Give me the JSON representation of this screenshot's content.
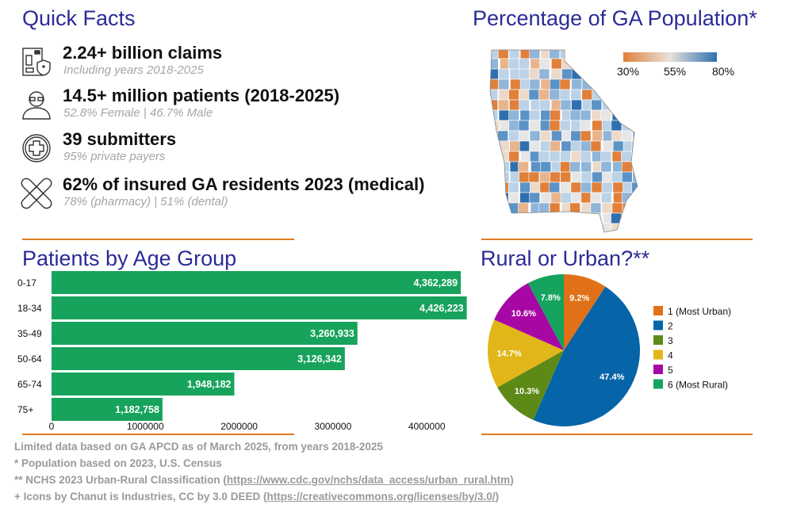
{
  "quick_facts": {
    "title": "Quick Facts",
    "items": [
      {
        "icon": "claims-document-shield-icon",
        "headline": "2.24+ billion claims",
        "sub": "Including years 2018-2025"
      },
      {
        "icon": "elderly-patient-icon",
        "headline": "14.5+ million patients (2018-2025)",
        "sub": "52.8% Female | 46.7% Male"
      },
      {
        "icon": "medical-cross-circle-icon",
        "headline": "39 submitters",
        "sub": "95% private payers"
      },
      {
        "icon": "bandage-icon",
        "headline": "62% of insured GA residents 2023 (medical)",
        "sub": "78% (pharmacy) | 51% (dental)"
      }
    ]
  },
  "map": {
    "title": "Percentage of GA Population*",
    "legend": {
      "min_label": "30%",
      "mid_label": "55%",
      "max_label": "80%",
      "colors": [
        "#e0803a",
        "#e8e2dc",
        "#2f6fb0"
      ]
    }
  },
  "chart_data": [
    {
      "type": "bar",
      "orientation": "horizontal",
      "title": "Patients by Age Group",
      "categories": [
        "0-17",
        "18-34",
        "35-49",
        "50-64",
        "65-74",
        "75+"
      ],
      "values": [
        4362289,
        4426223,
        3260933,
        3126342,
        1948182,
        1182758
      ],
      "value_labels": [
        "4,362,289",
        "4,426,223",
        "3,260,933",
        "3,126,342",
        "1,948,182",
        "1,182,758"
      ],
      "x_ticks": [
        "0",
        "1000000",
        "2000000",
        "3000000",
        "4000000"
      ],
      "x_tick_values": [
        0,
        1000000,
        2000000,
        3000000,
        4000000
      ],
      "color": "#17a35c",
      "grid": false
    },
    {
      "type": "pie",
      "title": "Rural or Urban?**",
      "legend_position": "right",
      "slices": [
        {
          "label": "1 (Most Urban)",
          "value": 9.2,
          "text": "9.2%",
          "color": "#e07118"
        },
        {
          "label": "2",
          "value": 47.4,
          "text": "47.4%",
          "color": "#0565a8"
        },
        {
          "label": "3",
          "value": 10.3,
          "text": "10.3%",
          "color": "#5d8a17"
        },
        {
          "label": "4",
          "value": 14.7,
          "text": "14.7%",
          "color": "#e2b619"
        },
        {
          "label": "5",
          "value": 10.6,
          "text": "10.6%",
          "color": "#a708a5"
        },
        {
          "label": "6 (Most Rural)",
          "value": 7.8,
          "text": "7.8%",
          "color": "#15a35e"
        }
      ]
    }
  ],
  "footer": {
    "line1": "Limited data based on GA APCD as of March 2025, from years 2018-2025",
    "line2": "* Population based on 2023, U.S. Census",
    "line3_prefix": "** NCHS 2023 Urban-Rural Classification (",
    "line3_link": "https://www.cdc.gov/nchs/data_access/urban_rural.htm",
    "line3_suffix": ")",
    "line4_prefix": "+ Icons by Chanut is Industries, CC by 3.0 DEED (",
    "line4_link": "https://creativecommons.org/licenses/by/3.0/",
    "line4_suffix": ")"
  },
  "accent": "#e07a1f"
}
